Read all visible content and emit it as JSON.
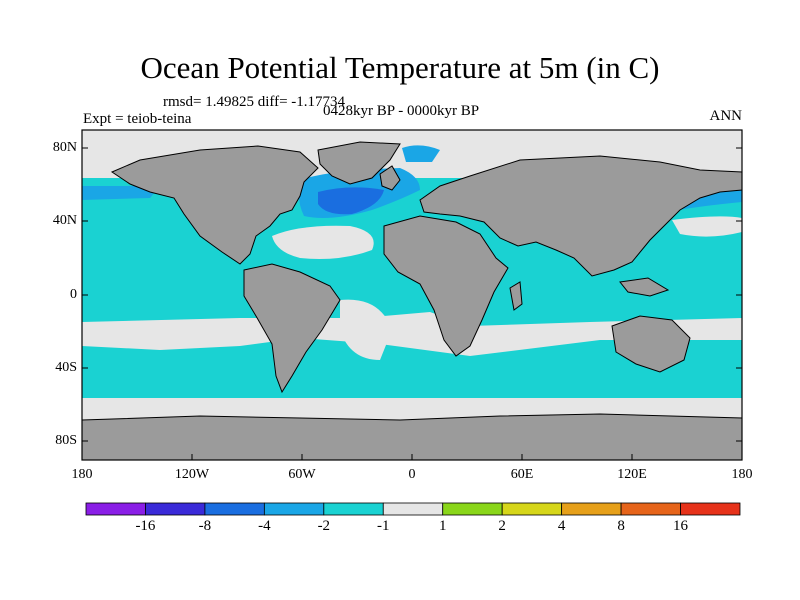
{
  "title": "Ocean Potential Temperature at 5m (in C)",
  "stats_label": "rmsd= 1.49825 diff= -1.17734",
  "experiment_label": "Expt = teiob-teina",
  "period_label": "0428kyr BP - 0000kyr BP",
  "season_label": "ANN",
  "y_ticks": [
    "80N",
    "40N",
    "0",
    "40S",
    "80S"
  ],
  "x_ticks": [
    "180",
    "120W",
    "60W",
    "0",
    "60E",
    "120E",
    "180"
  ],
  "colorbar": {
    "tick_labels": [
      "-16",
      "-8",
      "-4",
      "-2",
      "-1",
      "1",
      "2",
      "4",
      "8",
      "16"
    ],
    "colors": [
      "#8a1ee6",
      "#3a2ad8",
      "#1a6ee0",
      "#1aa6e6",
      "#1ad2d2",
      "#e6e6e6",
      "#8ad61a",
      "#d6d61a",
      "#e6a01a",
      "#e6641a",
      "#e6321a"
    ]
  },
  "map_colors": {
    "land": "#9b9b9b",
    "neutral": "#e6e6e6",
    "ocean_minus1_to_minus2": "#1ad2d2",
    "ocean_minus2_to_minus4": "#1aa6e6",
    "ocean_minus4_to_minus8": "#1a6ee0"
  }
}
